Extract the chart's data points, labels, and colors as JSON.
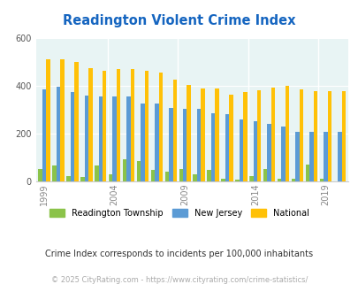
{
  "title": "Readington Violent Crime Index",
  "years": [
    1999,
    2000,
    2001,
    2002,
    2003,
    2004,
    2005,
    2006,
    2007,
    2008,
    2009,
    2010,
    2011,
    2012,
    2013,
    2014,
    2015,
    2016,
    2017,
    2018,
    2019,
    2020
  ],
  "readington": [
    50,
    65,
    20,
    18,
    65,
    30,
    90,
    85,
    45,
    38,
    50,
    30,
    45,
    10,
    5,
    20,
    50,
    10,
    10,
    70,
    10,
    0
  ],
  "new_jersey": [
    385,
    395,
    375,
    360,
    355,
    355,
    355,
    325,
    325,
    308,
    303,
    303,
    285,
    280,
    258,
    250,
    240,
    228,
    208,
    207,
    207,
    207
  ],
  "national": [
    510,
    510,
    498,
    472,
    462,
    470,
    468,
    462,
    455,
    425,
    403,
    388,
    387,
    363,
    373,
    381,
    393,
    399,
    383,
    378,
    378,
    376
  ],
  "color_readington": "#8bc34a",
  "color_nj": "#5b9bd5",
  "color_national": "#ffc107",
  "bg_color": "#e8f4f4",
  "ylim": [
    0,
    600
  ],
  "yticks": [
    0,
    200,
    400,
    600
  ],
  "labeled_years": [
    1999,
    2004,
    2009,
    2014,
    2019
  ],
  "title_color": "#1565c0",
  "subtitle": "Crime Index corresponds to incidents per 100,000 inhabitants",
  "subtitle_color": "#333333",
  "footer": "© 2025 CityRating.com - https://www.cityrating.com/crime-statistics/",
  "footer_color": "#aaaaaa"
}
